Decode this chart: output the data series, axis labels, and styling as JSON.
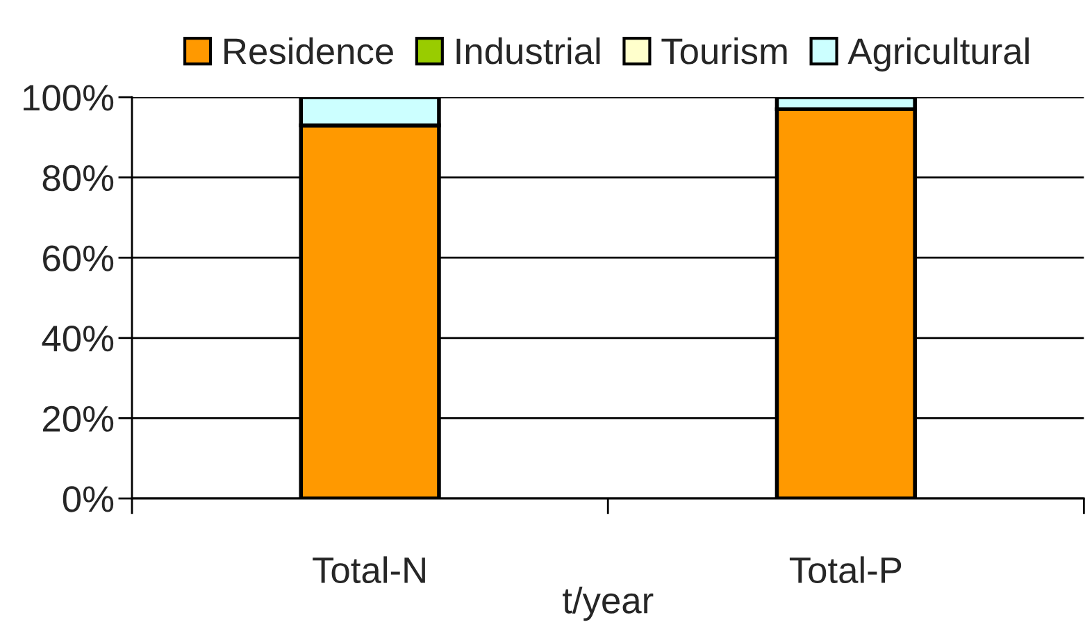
{
  "chart_data": {
    "type": "bar",
    "stacked": true,
    "categories": [
      "Total-N",
      "Total-P"
    ],
    "series": [
      {
        "name": "Residence",
        "color": "#ff9900",
        "values": [
          93,
          97
        ]
      },
      {
        "name": "Industrial",
        "color": "#99cc00",
        "values": [
          0,
          0
        ]
      },
      {
        "name": "Tourism",
        "color": "#ffffcc",
        "values": [
          0,
          0
        ]
      },
      {
        "name": "Agricultural",
        "color": "#ccffff",
        "values": [
          7,
          3
        ]
      }
    ],
    "xlabel": "t/year",
    "ylim": [
      0,
      100
    ],
    "yticks": [
      {
        "value": 0,
        "label": "0%"
      },
      {
        "value": 20,
        "label": "20%"
      },
      {
        "value": 40,
        "label": "40%"
      },
      {
        "value": 60,
        "label": "60%"
      },
      {
        "value": 80,
        "label": "80%"
      },
      {
        "value": 100,
        "label": "100%"
      }
    ],
    "grid": "y",
    "legend": "top"
  }
}
